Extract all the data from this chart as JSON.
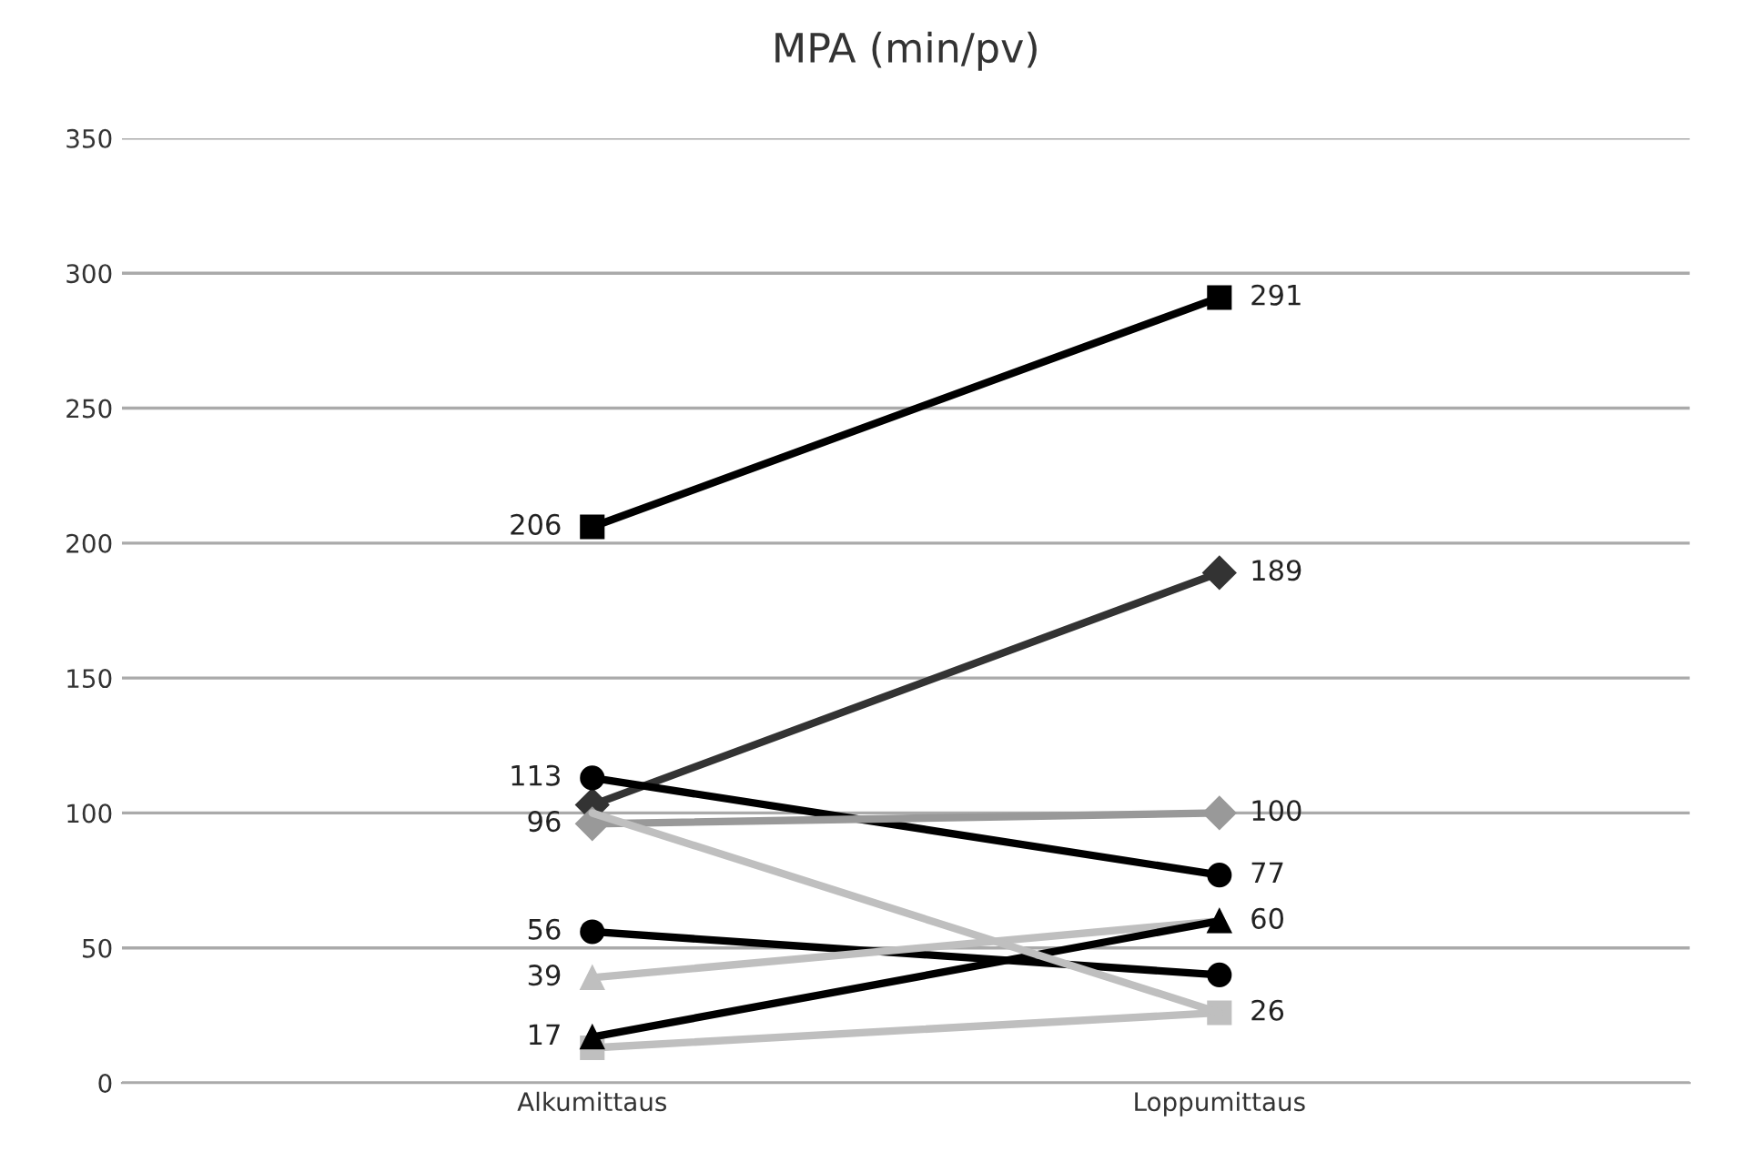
{
  "chart_data": {
    "type": "line",
    "title": "MPA (min/pv)",
    "categories": [
      "Alkumittaus",
      "Loppumittaus"
    ],
    "ylim": [
      0,
      350
    ],
    "yticks": [
      0,
      50,
      100,
      150,
      200,
      250,
      300,
      350
    ],
    "grid": "y",
    "series": [
      {
        "color": "#000000",
        "marker": "square",
        "values": [
          206,
          291
        ],
        "value_labels": [
          "206",
          "291"
        ]
      },
      {
        "color": "#333333",
        "marker": "diamond",
        "values": [
          103,
          189
        ],
        "value_labels": [
          null,
          "189"
        ]
      },
      {
        "color": "#000000",
        "marker": "circle",
        "values": [
          113,
          77
        ],
        "value_labels": [
          "113",
          "77"
        ]
      },
      {
        "color": "#999999",
        "marker": "diamond",
        "values": [
          96,
          100
        ],
        "value_labels": [
          "96",
          "100"
        ]
      },
      {
        "color": "#bfbfbf",
        "marker": "square",
        "values": [
          13,
          26
        ],
        "value_labels": [
          null,
          "26"
        ]
      },
      {
        "color": "#000000",
        "marker": "circle",
        "values": [
          56,
          40
        ],
        "value_labels": [
          "56",
          null
        ]
      },
      {
        "color": "#bfbfbf",
        "marker": "triangle",
        "values": [
          39,
          60
        ],
        "value_labels": [
          "39",
          "60"
        ]
      },
      {
        "color": "#000000",
        "marker": "triangle",
        "values": [
          17,
          60
        ],
        "value_labels": [
          "17",
          null
        ]
      },
      {
        "color": "#bfbfbf",
        "marker": "none",
        "values": [
          100,
          26
        ],
        "value_labels": [
          null,
          null
        ]
      }
    ]
  }
}
